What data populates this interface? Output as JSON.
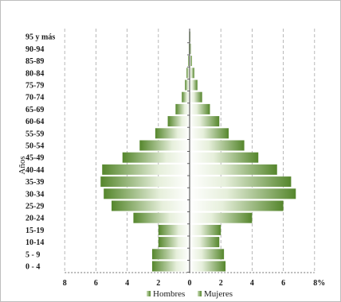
{
  "chart_data": {
    "type": "bar",
    "orientation": "horizontal",
    "subtype": "population-pyramid",
    "categories": [
      "0 - 4",
      "5 - 9",
      "10-14",
      "15-19",
      "20-24",
      "25-29",
      "30-34",
      "35-39",
      "40-44",
      "45-49",
      "50-54",
      "55-59",
      "60-64",
      "65-69",
      "70-74",
      "75-79",
      "80-84",
      "85-89",
      "90-94",
      "95 y más"
    ],
    "ylabel": "Años",
    "x_ticks": [
      "8",
      "6",
      "4",
      "2",
      "0",
      "2",
      "4",
      "6",
      "8%"
    ],
    "xlim": [
      -8,
      8
    ],
    "grid": true,
    "legend_position": "bottom",
    "series": [
      {
        "name": "Hombres",
        "color": "#5a8a32",
        "values": [
          2.4,
          2.4,
          2.0,
          2.0,
          3.6,
          5.0,
          5.5,
          5.7,
          5.6,
          4.3,
          3.2,
          2.2,
          1.4,
          0.9,
          0.5,
          0.3,
          0.2,
          0.1,
          0.05,
          0.03
        ]
      },
      {
        "name": "Mujeres",
        "color": "#5a8a32",
        "values": [
          2.3,
          2.2,
          1.9,
          2.0,
          4.0,
          6.0,
          6.8,
          6.5,
          5.6,
          4.4,
          3.5,
          2.5,
          1.9,
          1.3,
          0.8,
          0.5,
          0.3,
          0.15,
          0.08,
          0.04
        ]
      }
    ]
  }
}
